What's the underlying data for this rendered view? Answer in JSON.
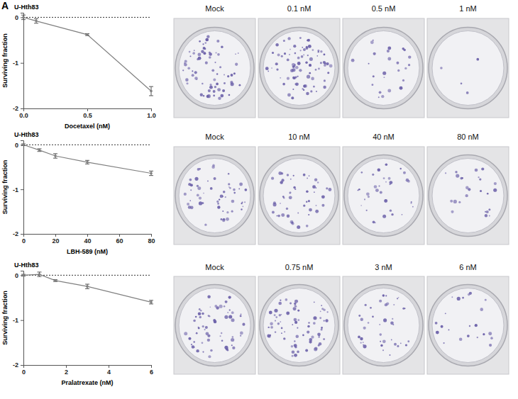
{
  "panel": "A",
  "chart_data": [
    {
      "type": "line",
      "title": "U-Hth83",
      "x_label": "Docetaxel (nM)",
      "y_label": "Surviving fraction",
      "x": [
        0,
        0.1,
        0.5,
        1
      ],
      "values": [
        0,
        -0.08,
        -0.38,
        -1.62
      ],
      "errors": [
        0.05,
        0.05,
        0.02,
        0.1
      ],
      "xlim": [
        0,
        1
      ],
      "xticks": [
        {
          "value": 0,
          "label": "0.0"
        },
        0.5,
        {
          "value": 1,
          "label": "1.0"
        }
      ],
      "ylim": [
        -2,
        0.1
      ],
      "yticks": [
        0,
        -1,
        -2
      ],
      "reference_line": 0,
      "color": "#808080",
      "marker": "circle",
      "grid": false,
      "annotations": [
        "Mock",
        "0.1 nM",
        "0.5 nM",
        "1 nM"
      ]
    },
    {
      "type": "line",
      "title": "U-Hth83",
      "x_label": "LBH-589 (nM)",
      "y_label": "Surviving fraction",
      "x": [
        0,
        10,
        20,
        40,
        80
      ],
      "values": [
        0,
        -0.12,
        -0.25,
        -0.39,
        -0.64
      ],
      "errors": [
        0.02,
        0.03,
        0.05,
        0.04,
        0.05
      ],
      "xlim": [
        0,
        80
      ],
      "xticks": [
        0,
        20,
        40,
        60,
        80
      ],
      "ylim": [
        -2,
        0.1
      ],
      "yticks": [
        0,
        -1,
        -2
      ],
      "reference_line": 0,
      "color": "#808080",
      "marker": "circle",
      "grid": false,
      "annotations": [
        "Mock",
        "10 nM",
        "40 nM",
        "80 nM"
      ]
    },
    {
      "type": "line",
      "title": "U-Hth83",
      "x_label": "Pralatrexate (nM)",
      "y_label": "Surviving fraction",
      "x": [
        0,
        0.75,
        1.5,
        3,
        6
      ],
      "values": [
        0,
        0.02,
        -0.12,
        -0.25,
        -0.6
      ],
      "errors": [
        0.02,
        0.05,
        0.02,
        0.05,
        0.04
      ],
      "xlim": [
        0,
        6
      ],
      "xticks": [
        0,
        2,
        4,
        6
      ],
      "ylim": [
        -2,
        0.1
      ],
      "yticks": [
        0,
        -1,
        -2
      ],
      "reference_line": 0,
      "color": "#808080",
      "marker": "circle",
      "grid": false,
      "annotations": [
        "Mock",
        "0.75 nM",
        "3 nM",
        "6 nM"
      ]
    }
  ]
}
